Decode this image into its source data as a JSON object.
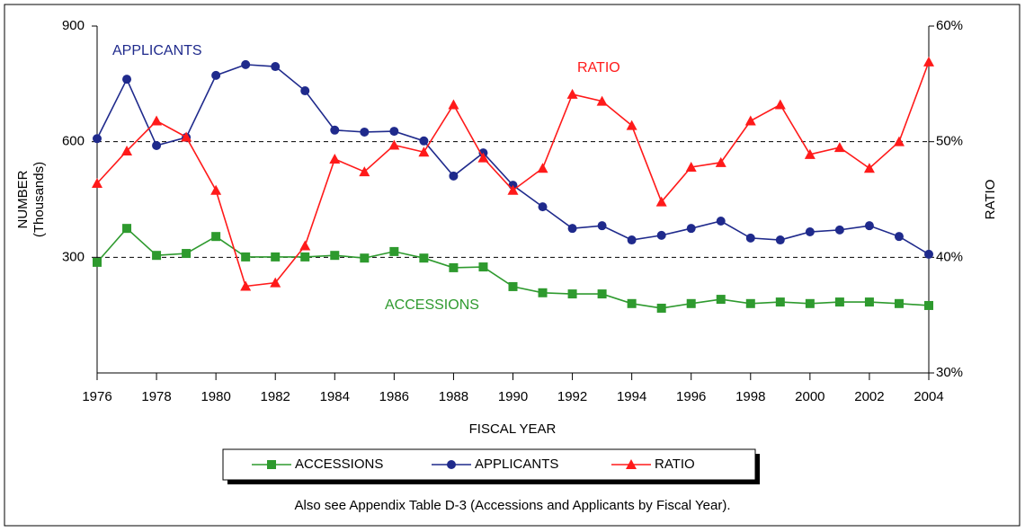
{
  "chart_data": {
    "type": "line",
    "x_label": "FISCAL YEAR",
    "y_label": [
      "NUMBER",
      "(Thousands)"
    ],
    "y2_label": "RATIO",
    "x": [
      1976,
      1977,
      1978,
      1979,
      1980,
      1981,
      1982,
      1983,
      1984,
      1985,
      1986,
      1987,
      1988,
      1989,
      1990,
      1991,
      1992,
      1993,
      1994,
      1995,
      1996,
      1997,
      1998,
      1999,
      2000,
      2001,
      2002,
      2003,
      2004
    ],
    "xlim": [
      1976,
      2004
    ],
    "xticks": [
      1976,
      1978,
      1980,
      1982,
      1984,
      1986,
      1988,
      1990,
      1992,
      1994,
      1996,
      1998,
      2000,
      2002,
      2004
    ],
    "ylim": [
      0,
      900
    ],
    "yticks": [
      300,
      600,
      900
    ],
    "y2lim": [
      30,
      60
    ],
    "y2ticks": [
      {
        "value": 30,
        "label": "30%"
      },
      {
        "value": 40,
        "label": "40%"
      },
      {
        "value": 50,
        "label": "50%"
      },
      {
        "value": 60,
        "label": "60%"
      }
    ],
    "grid": true,
    "series": [
      {
        "name": "ACCESSIONS",
        "color": "#2e9a2e",
        "marker": "square",
        "values": [
          287,
          375,
          305,
          310,
          354,
          301,
          301,
          301,
          305,
          298,
          315,
          298,
          273,
          275,
          224,
          208,
          205,
          205,
          180,
          168,
          180,
          191,
          180,
          184,
          180,
          184,
          184,
          180,
          175
        ]
      },
      {
        "name": "APPLICANTS",
        "color": "#1f2a8c",
        "marker": "circle",
        "values": [
          608,
          762,
          590,
          611,
          772,
          800,
          795,
          732,
          630,
          625,
          627,
          602,
          511,
          571,
          487,
          431,
          375,
          382,
          345,
          357,
          375,
          394,
          350,
          345,
          366,
          371,
          382,
          354,
          308
        ]
      },
      {
        "name": "RATIO",
        "color": "#ff1a1a",
        "marker": "triangle",
        "axis": "y2",
        "values": [
          46.4,
          49.2,
          51.8,
          50.4,
          45.8,
          37.5,
          37.8,
          41.0,
          48.5,
          47.4,
          49.7,
          49.1,
          53.2,
          48.6,
          45.8,
          47.7,
          54.1,
          53.5,
          51.4,
          44.8,
          47.8,
          48.2,
          51.8,
          53.2,
          48.9,
          49.5,
          47.7,
          50.0,
          56.9
        ]
      }
    ],
    "annotations": [
      "APPLICANTS",
      "RATIO",
      "ACCESSIONS"
    ],
    "footnote": "Also see Appendix Table D-3 (Accessions and Applicants by Fiscal Year)."
  }
}
